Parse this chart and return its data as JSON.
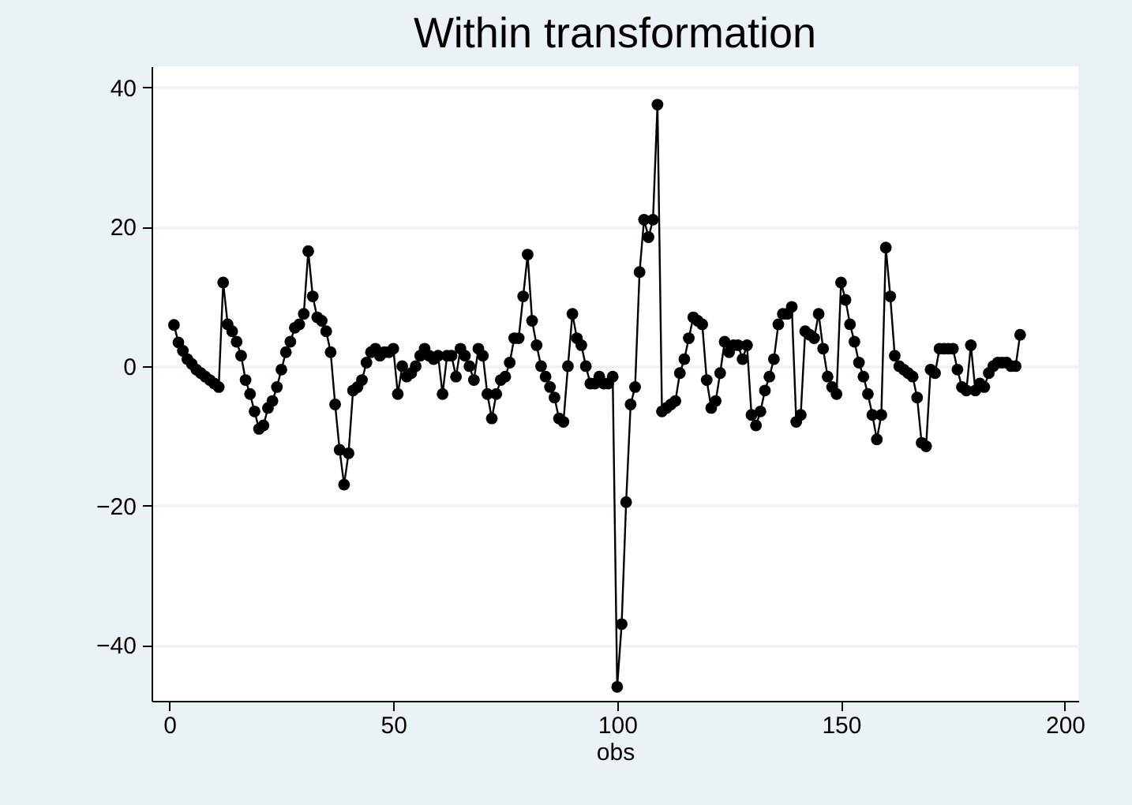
{
  "chart_data": {
    "type": "line",
    "title": "Within transformation",
    "xlabel": "obs",
    "marker": "circle",
    "line_style": "solid",
    "grid": "y",
    "x": [
      1,
      2,
      3,
      4,
      5,
      6,
      7,
      8,
      9,
      10,
      11,
      12,
      13,
      14,
      15,
      16,
      17,
      18,
      19,
      20,
      21,
      22,
      23,
      24,
      25,
      26,
      27,
      28,
      29,
      30,
      31,
      32,
      33,
      34,
      35,
      36,
      37,
      38,
      39,
      40,
      41,
      42,
      43,
      44,
      45,
      46,
      47,
      48,
      49,
      50,
      51,
      52,
      53,
      54,
      55,
      56,
      57,
      58,
      59,
      60,
      61,
      62,
      63,
      64,
      65,
      66,
      67,
      68,
      69,
      70,
      71,
      72,
      73,
      74,
      75,
      76,
      77,
      78,
      79,
      80,
      81,
      82,
      83,
      84,
      85,
      86,
      87,
      88,
      89,
      90,
      91,
      92,
      93,
      94,
      95,
      96,
      97,
      98,
      99,
      100,
      101,
      102,
      103,
      104,
      105,
      106,
      107,
      108,
      109,
      110,
      111,
      112,
      113,
      114,
      115,
      116,
      117,
      118,
      119,
      120,
      121,
      122,
      123,
      124,
      125,
      126,
      127,
      128,
      129,
      130,
      131,
      132,
      133,
      134,
      135,
      136,
      137,
      138,
      139,
      140,
      141,
      142,
      143,
      144,
      145,
      146,
      147,
      148,
      149,
      150,
      151,
      152,
      153,
      154,
      155,
      156,
      157,
      158,
      159,
      160,
      161,
      162,
      163,
      164,
      165,
      166,
      167,
      168,
      169,
      170,
      171,
      172,
      173,
      174,
      175,
      176,
      177,
      178,
      179,
      180,
      181,
      182,
      183,
      184,
      185,
      186,
      187,
      188,
      189,
      190
    ],
    "series": [
      {
        "color": "#000000",
        "values": [
          5.9,
          3.4,
          2.2,
          1,
          0.3,
          -0.5,
          -1,
          -1.5,
          -2,
          -2.5,
          -3,
          12,
          6,
          5,
          3.5,
          1.5,
          -2,
          -4,
          -6.5,
          -9,
          -8.5,
          -6,
          -5,
          -3,
          -0.5,
          2,
          3.5,
          5.5,
          6,
          7.5,
          16.5,
          10,
          7,
          6.5,
          5,
          2,
          -5.5,
          -12,
          -17,
          -12.5,
          -3.5,
          -3,
          -2,
          0.5,
          2,
          2.5,
          1.5,
          2,
          2,
          2.5,
          -4,
          0,
          -1.5,
          -1,
          0,
          1.5,
          2.5,
          1.5,
          1,
          1.5,
          -4,
          1.5,
          1.5,
          -1.5,
          2.5,
          1.5,
          0,
          -2,
          2.5,
          1.5,
          -4,
          -7.5,
          -4,
          -2,
          -1.5,
          0.5,
          4,
          4,
          10,
          16,
          6.5,
          3,
          0,
          -1.5,
          -3,
          -4.5,
          -7.5,
          -8,
          0,
          7.5,
          4,
          3,
          0,
          -2.5,
          -2.5,
          -1.5,
          -2.5,
          -2.5,
          -1.5,
          -46,
          -37,
          -19.5,
          -5.5,
          -3,
          13.5,
          21,
          18.5,
          21,
          37.5,
          -6.5,
          -6,
          -5.5,
          -5,
          -1,
          1,
          4,
          7,
          6.5,
          6,
          -2,
          -6,
          -5,
          -1,
          3.5,
          2,
          3,
          3,
          1,
          3,
          -7,
          -8.5,
          -6.5,
          -3.5,
          -1.5,
          1,
          6,
          7.5,
          7.5,
          8.5,
          -8,
          -7,
          5,
          4.5,
          4,
          7.5,
          2.5,
          -1.5,
          -3,
          -4,
          12,
          9.5,
          6,
          3.5,
          0.5,
          -1.5,
          -4,
          -7,
          -10.5,
          -7,
          17,
          10,
          1.5,
          0,
          -0.5,
          -1,
          -1.5,
          -4.5,
          -11,
          -11.5,
          -0.5,
          -1,
          2.5,
          2.5,
          2.5,
          2.5,
          -0.5,
          -3,
          -3.5,
          3,
          -3.5,
          -2.5,
          -3,
          -1,
          0,
          0.5,
          0.5,
          0.5,
          0,
          0,
          4.5
        ]
      }
    ],
    "xlim": [
      -4,
      203
    ],
    "xticks": [
      0,
      50,
      100,
      150,
      200
    ],
    "ylim": [
      -48,
      43
    ],
    "yticks": [
      -40,
      -20,
      0,
      20,
      40
    ]
  }
}
